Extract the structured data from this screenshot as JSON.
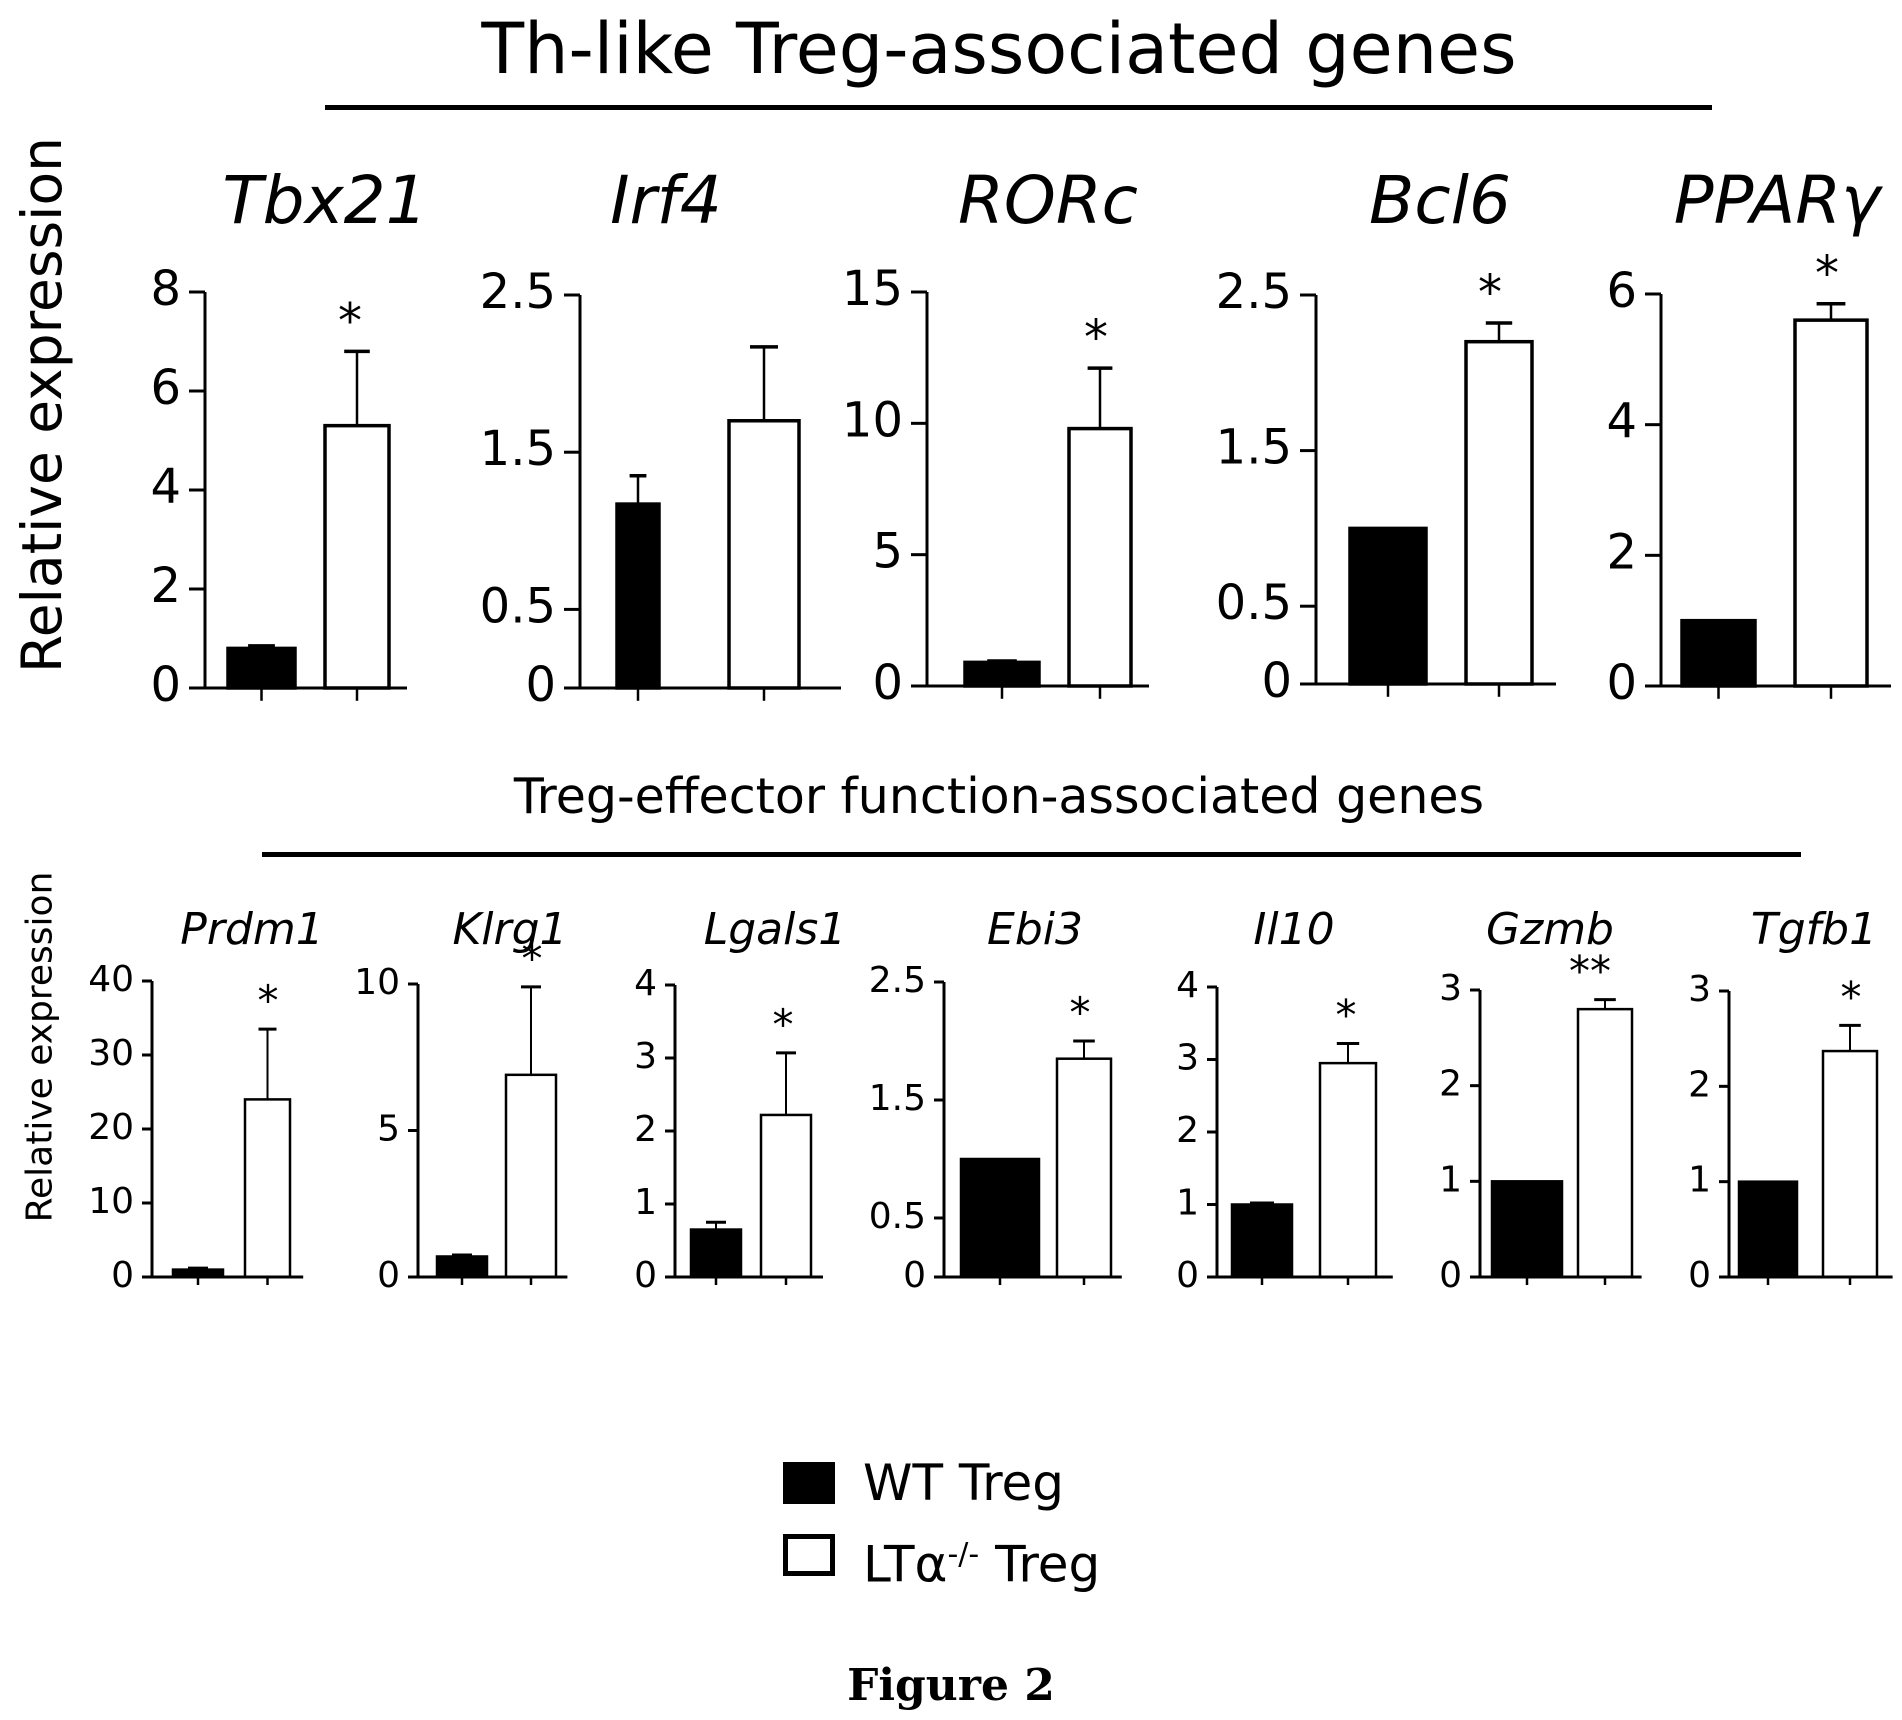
{
  "figure": {
    "section_top_title": "Th-like Treg-associated genes",
    "section_bottom_title": "Treg-effector function-associated genes",
    "ylabel": "Relative expression",
    "caption": "Figure 2",
    "legend": [
      {
        "label": "WT Treg",
        "fill": "#000000"
      },
      {
        "label": "LTα",
        "sup": "-/-",
        "suffix": " Treg",
        "fill": "#ffffff"
      }
    ],
    "colors": {
      "wt": "#000000",
      "ko": "#ffffff",
      "stroke": "#000000"
    }
  },
  "chart_data": [
    {
      "type": "bar",
      "row": "top",
      "title": "Tbx21",
      "ylabel": "Relative expression",
      "categories": [
        "WT Treg",
        "LTα-/- Treg"
      ],
      "values": [
        0.8,
        5.3
      ],
      "errors": [
        0.05,
        1.5
      ],
      "ylim": [
        0,
        8
      ],
      "ticks": [
        0,
        2,
        4,
        6,
        8
      ],
      "tick_labels": [
        "0",
        "2",
        "4",
        "6",
        "8"
      ],
      "significance": "*"
    },
    {
      "type": "bar",
      "row": "top",
      "title": "Irf4",
      "categories": [
        "WT Treg",
        "LTα-/- Treg"
      ],
      "values": [
        1.17,
        1.7
      ],
      "errors": [
        0.18,
        0.47
      ],
      "ylim": [
        0,
        2.5
      ],
      "ticks": [
        0,
        0.5,
        1.5,
        2.5
      ],
      "tick_labels": [
        "0",
        "0.5",
        "1.5",
        "2.5"
      ],
      "significance": ""
    },
    {
      "type": "bar",
      "row": "top",
      "title": "RORc",
      "categories": [
        "WT Treg",
        "LTα-/- Treg"
      ],
      "values": [
        0.9,
        9.8
      ],
      "errors": [
        0.05,
        2.3
      ],
      "ylim": [
        0,
        15
      ],
      "ticks": [
        0,
        5,
        10,
        15
      ],
      "tick_labels": [
        "0",
        "5",
        "10",
        "15"
      ],
      "significance": "*"
    },
    {
      "type": "bar",
      "row": "top",
      "title": "Bcl6",
      "categories": [
        "WT Treg",
        "LTα-/- Treg"
      ],
      "values": [
        1.0,
        2.2
      ],
      "errors": [
        0,
        0.12
      ],
      "ylim": [
        0,
        2.5
      ],
      "ticks": [
        0,
        0.5,
        1.5,
        2.5
      ],
      "tick_labels": [
        "0",
        "0.5",
        "1.5",
        "2.5"
      ],
      "significance": "*"
    },
    {
      "type": "bar",
      "row": "top",
      "title": "PPARγ",
      "categories": [
        "WT Treg",
        "LTα-/- Treg"
      ],
      "values": [
        1.0,
        5.6
      ],
      "errors": [
        0,
        0.25
      ],
      "ylim": [
        0,
        6
      ],
      "ticks": [
        0,
        2,
        4,
        6
      ],
      "tick_labels": [
        "0",
        "2",
        "4",
        "6"
      ],
      "significance": "*"
    },
    {
      "type": "bar",
      "row": "bottom",
      "title": "Prdm1",
      "ylabel": "Relative expression",
      "categories": [
        "WT Treg",
        "LTα-/- Treg"
      ],
      "values": [
        1.0,
        24
      ],
      "errors": [
        0.2,
        9.5
      ],
      "ylim": [
        0,
        40
      ],
      "ticks": [
        0,
        10,
        20,
        30,
        40
      ],
      "tick_labels": [
        "0",
        "10",
        "20",
        "30",
        "40"
      ],
      "significance": "*"
    },
    {
      "type": "bar",
      "row": "bottom",
      "title": "Klrg1",
      "categories": [
        "WT Treg",
        "LTα-/- Treg"
      ],
      "values": [
        0.7,
        6.9
      ],
      "errors": [
        0.05,
        3.0
      ],
      "ylim": [
        0,
        10
      ],
      "ticks": [
        0,
        5,
        10
      ],
      "tick_labels": [
        "0",
        "5",
        "10"
      ],
      "significance": "*"
    },
    {
      "type": "bar",
      "row": "bottom",
      "title": "Lgals1",
      "categories": [
        "WT Treg",
        "LTα-/- Treg"
      ],
      "values": [
        0.65,
        2.22
      ],
      "errors": [
        0.1,
        0.85
      ],
      "ylim": [
        0,
        4
      ],
      "ticks": [
        0,
        1,
        2,
        3,
        4
      ],
      "tick_labels": [
        "0",
        "1",
        "2",
        "3",
        "4"
      ],
      "significance": "*"
    },
    {
      "type": "bar",
      "row": "bottom",
      "title": "Ebi3",
      "categories": [
        "WT Treg",
        "LTα-/- Treg"
      ],
      "values": [
        1.0,
        1.85
      ],
      "errors": [
        0,
        0.15
      ],
      "ylim": [
        0,
        2.5
      ],
      "ticks": [
        0,
        0.5,
        1.5,
        2.5
      ],
      "tick_labels": [
        "0",
        "0.5",
        "1.5",
        "2.5"
      ],
      "significance": "*"
    },
    {
      "type": "bar",
      "row": "bottom",
      "title": "Il10",
      "categories": [
        "WT Treg",
        "LTα-/- Treg"
      ],
      "values": [
        1.0,
        2.95
      ],
      "errors": [
        0.02,
        0.27
      ],
      "ylim": [
        0,
        4
      ],
      "ticks": [
        0,
        1,
        2,
        3,
        4
      ],
      "tick_labels": [
        "0",
        "1",
        "2",
        "3",
        "4"
      ],
      "significance": "*"
    },
    {
      "type": "bar",
      "row": "bottom",
      "title": "Gzmb",
      "categories": [
        "WT Treg",
        "LTα-/- Treg"
      ],
      "values": [
        1.0,
        2.8
      ],
      "errors": [
        0,
        0.1
      ],
      "ylim": [
        0,
        3
      ],
      "ticks": [
        0,
        1,
        2,
        3
      ],
      "tick_labels": [
        "0",
        "1",
        "2",
        "3"
      ],
      "significance": "**"
    },
    {
      "type": "bar",
      "row": "bottom",
      "title": "Tgfb1",
      "categories": [
        "WT Treg",
        "LTα-/- Treg"
      ],
      "values": [
        1.0,
        2.37
      ],
      "errors": [
        0,
        0.27
      ],
      "ylim": [
        0,
        3
      ],
      "ticks": [
        0,
        1,
        2,
        3
      ],
      "tick_labels": [
        "0",
        "1",
        "2",
        "3"
      ],
      "significance": "*"
    }
  ]
}
